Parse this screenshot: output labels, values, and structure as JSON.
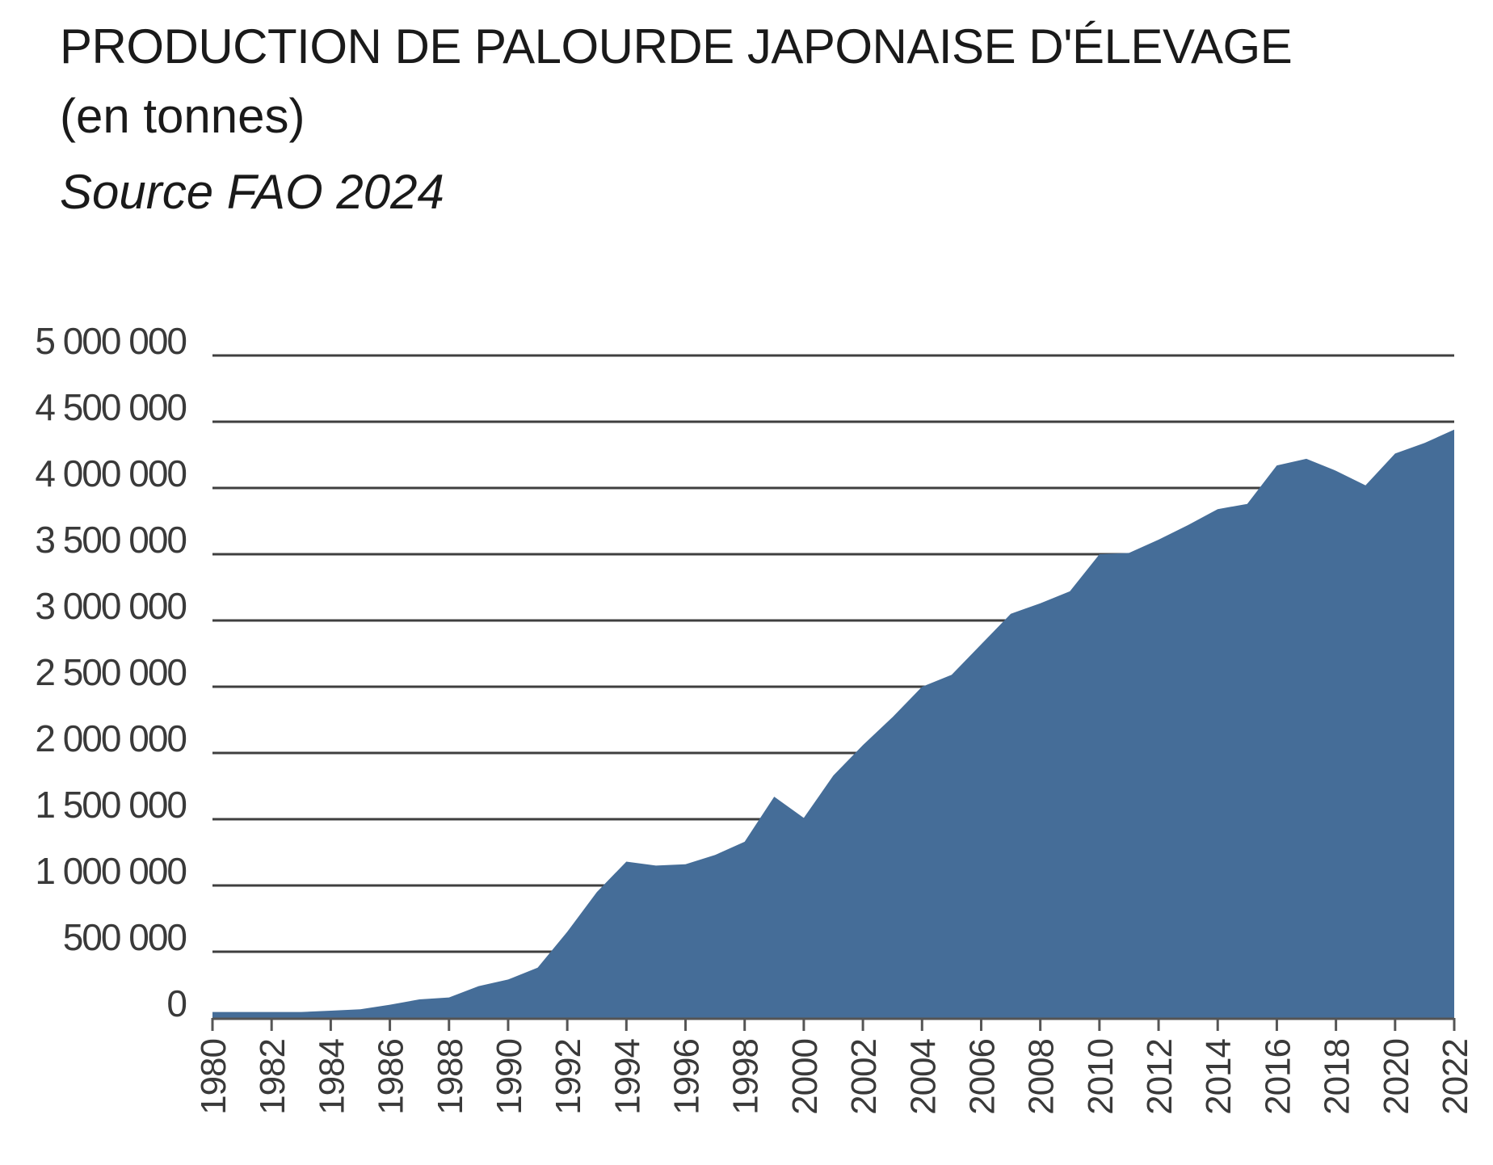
{
  "chart_data": {
    "type": "area",
    "title": "PRODUCTION DE PALOURDE JAPONAISE D'ÉLEVAGE",
    "subtitle": "(en tonnes)",
    "source": "Source FAO 2024",
    "xlabel": "",
    "ylabel": "",
    "ylim": [
      0,
      5000000
    ],
    "xlim": [
      1980,
      2022
    ],
    "grid": true,
    "legend": "none",
    "color": "#456d98",
    "y_ticks": [
      {
        "value": 0,
        "label": "0"
      },
      {
        "value": 500000,
        "label": "500 000"
      },
      {
        "value": 1000000,
        "label": "1 000 000"
      },
      {
        "value": 1500000,
        "label": "1 500 000"
      },
      {
        "value": 2000000,
        "label": "2 000 000"
      },
      {
        "value": 2500000,
        "label": "2 500 000"
      },
      {
        "value": 3000000,
        "label": "3 000 000"
      },
      {
        "value": 3500000,
        "label": "3 500 000"
      },
      {
        "value": 4000000,
        "label": "4 000 000"
      },
      {
        "value": 4500000,
        "label": "4 500 000"
      },
      {
        "value": 5000000,
        "label": "5 000 000"
      }
    ],
    "x_ticks": [
      "1980",
      "1982",
      "1984",
      "1986",
      "1988",
      "1990",
      "1992",
      "1994",
      "1996",
      "1998",
      "2000",
      "2002",
      "2004",
      "2006",
      "2008",
      "2010",
      "2012",
      "2014",
      "2016",
      "2018",
      "2020",
      "2022"
    ],
    "x": [
      1980,
      1981,
      1982,
      1983,
      1984,
      1985,
      1986,
      1987,
      1988,
      1989,
      1990,
      1991,
      1992,
      1993,
      1994,
      1995,
      1996,
      1997,
      1998,
      1999,
      2000,
      2001,
      2002,
      2003,
      2004,
      2005,
      2006,
      2007,
      2008,
      2009,
      2010,
      2011,
      2012,
      2013,
      2014,
      2015,
      2016,
      2017,
      2018,
      2019,
      2020,
      2021,
      2022
    ],
    "values": [
      45000,
      45000,
      45000,
      45000,
      55000,
      65000,
      100000,
      140000,
      155000,
      240000,
      290000,
      380000,
      650000,
      950000,
      1180000,
      1150000,
      1160000,
      1230000,
      1330000,
      1670000,
      1510000,
      1830000,
      2060000,
      2270000,
      2500000,
      2590000,
      2820000,
      3050000,
      3130000,
      3220000,
      3500000,
      3510000,
      3610000,
      3720000,
      3840000,
      3880000,
      4170000,
      4220000,
      4130000,
      4020000,
      4260000,
      4340000,
      4440000
    ]
  }
}
